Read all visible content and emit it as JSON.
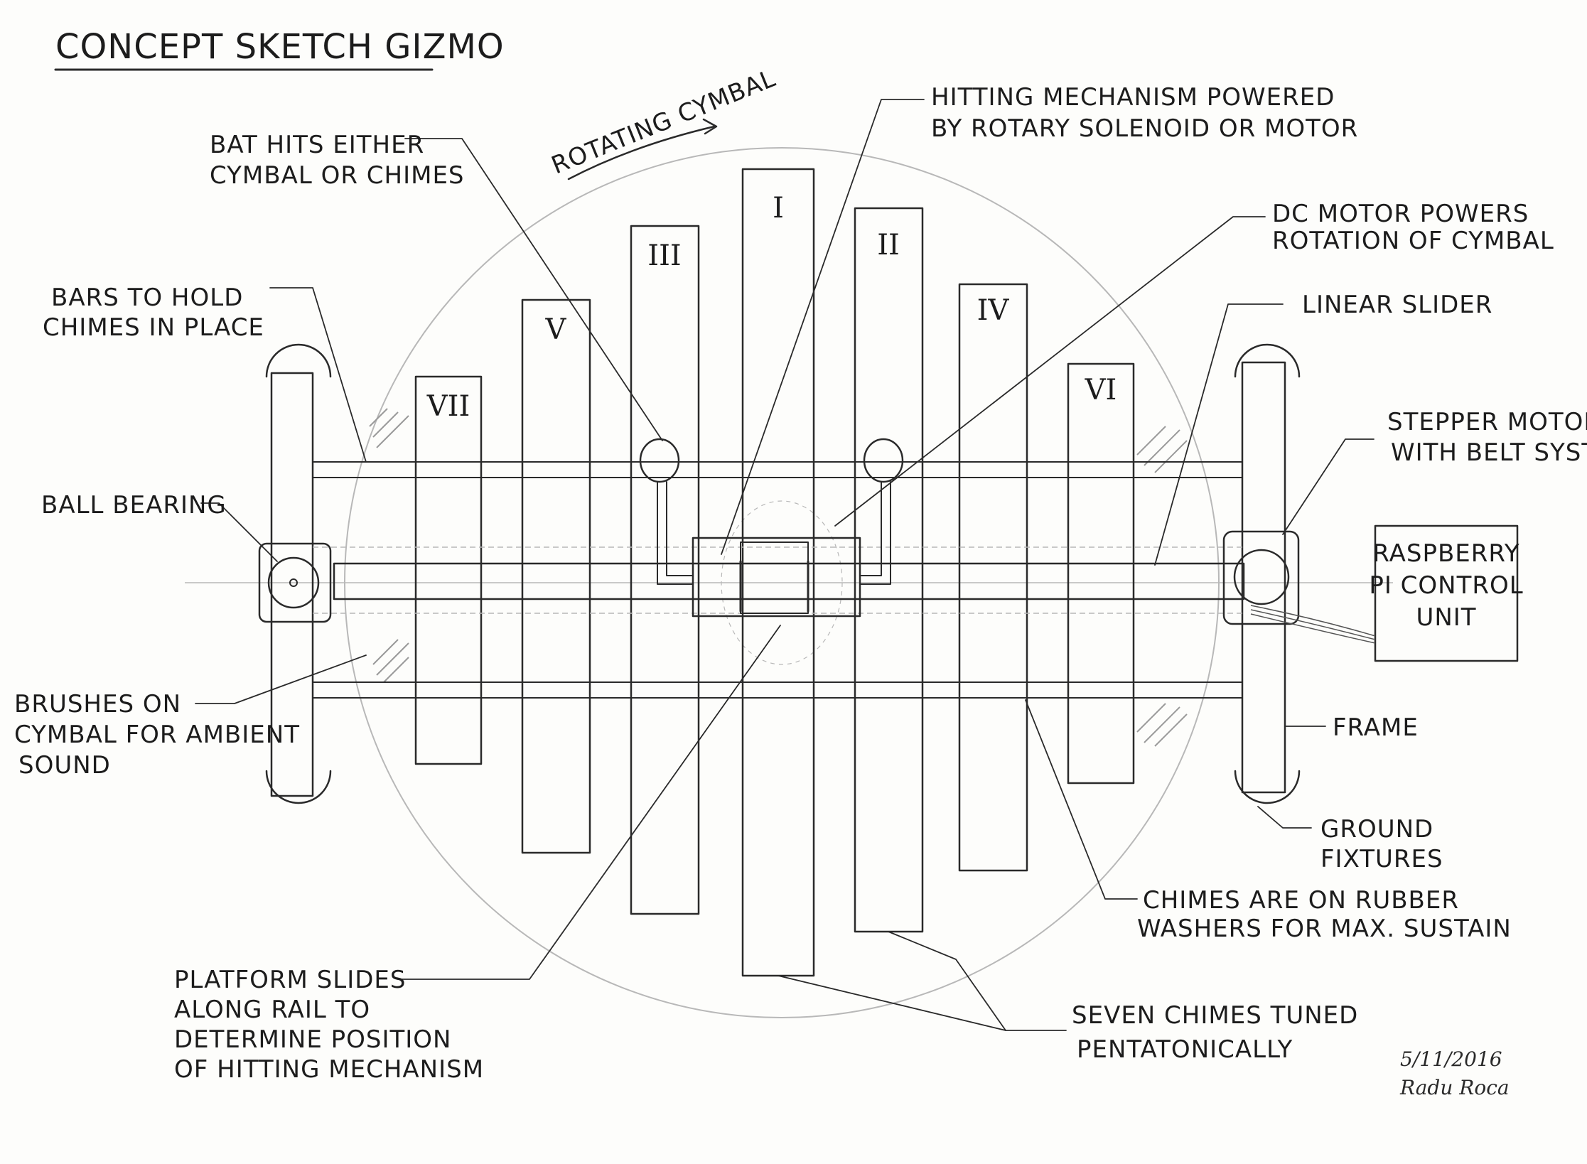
{
  "title": "CONCEPT SKETCH GIZMO",
  "chimes": {
    "I": "I",
    "II": "II",
    "III": "III",
    "IV": "IV",
    "V": "V",
    "VI": "VI",
    "VII": "VII"
  },
  "labels": {
    "rotating_cymbal": "ROTATING CYMBAL",
    "bat_hits": [
      "BAT HITS EITHER",
      "CYMBAL OR CHIMES"
    ],
    "hitting_mechanism": [
      "HITTING MECHANISM POWERED",
      "BY ROTARY SOLENOID OR MOTOR"
    ],
    "dc_motor": [
      "DC MOTOR POWERS",
      "ROTATION OF CYMBAL"
    ],
    "bars_to_hold": [
      "BARS TO HOLD",
      "CHIMES IN PLACE"
    ],
    "linear_slider": "LINEAR SLIDER",
    "stepper_motor": [
      "STEPPER MOTOR",
      "WITH BELT SYSTEM"
    ],
    "ball_bearing": "BALL BEARING",
    "raspberry_pi": [
      "RASPBERRY",
      "PI CONTROL",
      "UNIT"
    ],
    "brushes": [
      "BRUSHES ON",
      "CYMBAL FOR AMBIENT",
      "SOUND"
    ],
    "frame": "FRAME",
    "ground_fixtures": [
      "GROUND",
      "FIXTURES"
    ],
    "chimes_rubber": [
      "CHIMES ARE ON RUBBER",
      "WASHERS FOR MAX. SUSTAIN"
    ],
    "platform_slides": [
      "PLATFORM SLIDES",
      "ALONG RAIL TO",
      "DETERMINE POSITION",
      "OF HITTING MECHANISM"
    ],
    "seven_chimes": [
      "SEVEN CHIMES TUNED",
      "PENTATONICALLY"
    ]
  },
  "signature": {
    "date": "5/11/2016",
    "name": "Radu Roca"
  }
}
